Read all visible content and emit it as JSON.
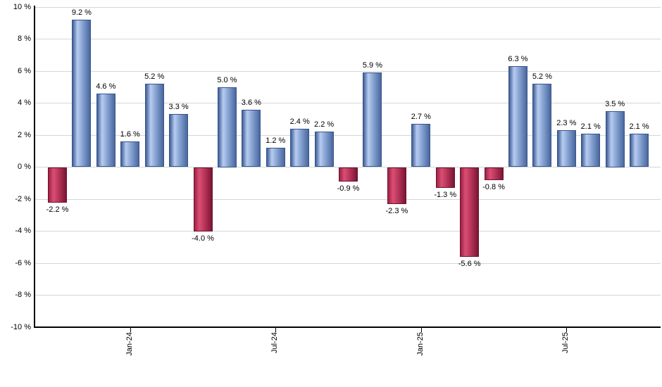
{
  "chart_data": {
    "type": "bar",
    "title": "",
    "xlabel": "",
    "ylabel": "",
    "grid": true,
    "legend_position": "none",
    "ylim": [
      -10,
      10
    ],
    "y_tick_values": [
      10,
      8,
      6,
      4,
      2,
      0,
      -2,
      -4,
      -6,
      -8,
      -10
    ],
    "y_tick_suffix": " %",
    "bar_count": 25,
    "values": [
      -2.2,
      9.2,
      4.6,
      1.6,
      5.2,
      3.3,
      -4.0,
      5.0,
      3.6,
      1.2,
      2.4,
      2.2,
      -0.9,
      5.9,
      -2.3,
      2.7,
      -1.3,
      -5.6,
      -0.8,
      6.3,
      5.2,
      2.3,
      2.1,
      3.5,
      2.1
    ],
    "value_label_suffix": " %",
    "value_labels": [
      "-2.2 %",
      "9.2 %",
      "4.6 %",
      "1.6 %",
      "5.2 %",
      "3.3 %",
      "-4.0 %",
      "5.0 %",
      "3.6 %",
      "1.2 %",
      "2.4 %",
      "2.2 %",
      "-0.9 %",
      "5.9 %",
      "-2.3 %",
      "2.7 %",
      "-1.3 %",
      "-5.6 %",
      "-0.8 %",
      "6.3 %",
      "5.2 %",
      "2.3 %",
      "2.1 %",
      "3.5 %",
      "2.1 %"
    ],
    "x_ticks": [
      {
        "index": 3,
        "label": "Jan-24"
      },
      {
        "index": 9,
        "label": "Jul-24"
      },
      {
        "index": 15,
        "label": "Jan-25"
      },
      {
        "index": 21,
        "label": "Jul-25"
      }
    ],
    "colors": {
      "positive_edge_left": "#3E5D96",
      "positive_highlight": "#B7CCF0",
      "positive_mid": "#7E9BCC",
      "positive_edge_right": "#4A679E",
      "positive_border": "#38548C",
      "negative_edge_left": "#9C2144",
      "negative_highlight": "#DB4E74",
      "negative_mid": "#B23256",
      "negative_edge_right": "#7A1533",
      "negative_border": "#6E1230",
      "gridline": "#D6D6D6",
      "axis": "#000000",
      "label_text": "#000000",
      "background": "#FFFFFF"
    }
  }
}
